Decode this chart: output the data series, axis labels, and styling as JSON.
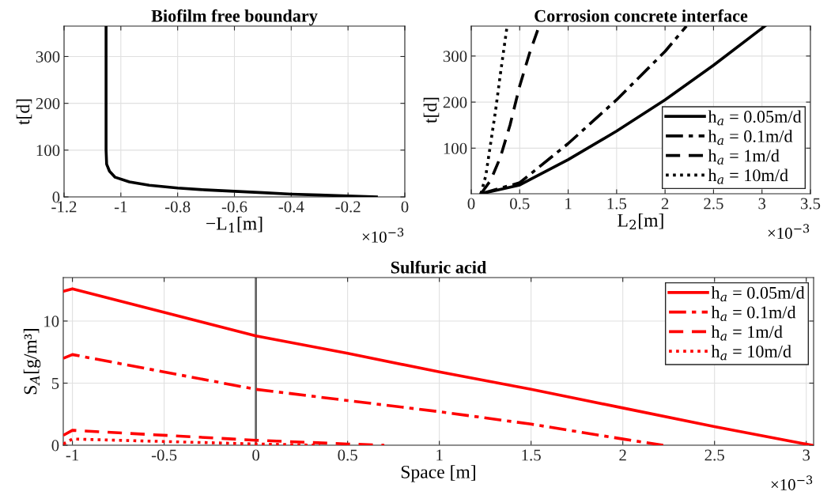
{
  "chart_data": [
    {
      "type": "line",
      "title": "Biofilm free boundary",
      "xlabel": "−L$_{1}$[m]",
      "ylabel": "t[d]",
      "xlim": [
        -1.2,
        0
      ],
      "xticks": [
        -1.2,
        -1,
        -0.8,
        -0.6,
        -0.4,
        -0.2,
        0
      ],
      "ylim": [
        0,
        365
      ],
      "yticks": [
        0,
        100,
        200,
        300
      ],
      "grid": true,
      "legend": false,
      "annotations": [
        "×10$^{−3}$"
      ],
      "series": [
        {
          "color": "#000000",
          "line_style": "solid",
          "x": [
            -0.1,
            -0.2,
            -0.3,
            -0.4,
            -0.5,
            -0.6,
            -0.7,
            -0.8,
            -0.9,
            -0.97,
            -1.02,
            -1.04,
            -1.05,
            -1.052,
            -1.052
          ],
          "values": [
            0,
            2,
            4,
            6,
            9,
            12,
            15,
            19,
            25,
            32,
            42,
            55,
            70,
            100,
            365
          ]
        }
      ]
    },
    {
      "type": "line",
      "title": "Corrosion concrete interface",
      "xlabel": "L$_{2}$[m]",
      "ylabel": "t[d]",
      "xlim": [
        0,
        3.5
      ],
      "xticks": [
        0,
        0.5,
        1,
        1.5,
        2,
        2.5,
        3,
        3.5
      ],
      "ylim": [
        1,
        365
      ],
      "yticks": [
        100,
        200,
        300
      ],
      "grid": true,
      "legend": "bottom right",
      "annotations": [
        "×10$^{−3}$"
      ],
      "series": [
        {
          "name": "h$_{a}$ = 0.05m/d",
          "color": "#000000",
          "line_style": "solid",
          "x": [
            0.1,
            0.5,
            1,
            1.5,
            2,
            2.5,
            3.03
          ],
          "values": [
            1,
            20,
            75,
            137,
            205,
            280,
            365
          ]
        },
        {
          "name": "h$_{a}$ = 0.1m/d",
          "color": "#000000",
          "line_style": "dashdot",
          "x": [
            0.1,
            0.5,
            1,
            1.5,
            2,
            2.22
          ],
          "values": [
            1,
            25,
            110,
            205,
            310,
            365
          ]
        },
        {
          "name": "h$_{a}$ = 1m/d",
          "color": "#000000",
          "line_style": "dashed",
          "x": [
            0.1,
            0.2,
            0.3,
            0.4,
            0.5,
            0.6,
            0.7
          ],
          "values": [
            1,
            30,
            80,
            150,
            235,
            305,
            365
          ]
        },
        {
          "name": "h$_{a}$ = 10m/d",
          "color": "#000000",
          "line_style": "dotted",
          "x": [
            0.1,
            0.15,
            0.2,
            0.25,
            0.3,
            0.37
          ],
          "values": [
            1,
            40,
            110,
            180,
            260,
            365
          ]
        }
      ]
    },
    {
      "type": "line",
      "title": "Sulfuric acid",
      "xlabel": "Space [m]",
      "ylabel": "S$_{A}$[g/m³]",
      "xlim": [
        -1.05,
        3.04
      ],
      "xticks": [
        -1,
        -0.5,
        0,
        0.5,
        1,
        1.5,
        2,
        2.5,
        3
      ],
      "ylim": [
        0,
        13.5
      ],
      "yticks": [
        0,
        5,
        10
      ],
      "grid": true,
      "legend": "top right",
      "annotations": [
        "×10$^{−3}$"
      ],
      "ref_lines": [
        {
          "axis": "x",
          "value": 0,
          "color": "#666666",
          "line_style": "solid"
        }
      ],
      "series": [
        {
          "name": "h$_{a}$ = 0.05m/d",
          "color": "#ff0000",
          "line_style": "solid",
          "x": [
            -1.05,
            -1,
            0,
            0.5,
            1,
            1.5,
            2,
            2.5,
            3.03
          ],
          "values": [
            12.4,
            12.6,
            8.8,
            7.4,
            5.9,
            4.5,
            3.0,
            1.5,
            0
          ]
        },
        {
          "name": "h$_{a}$ = 0.1m/d",
          "color": "#ff0000",
          "line_style": "dashdot",
          "x": [
            -1.05,
            -1,
            0,
            0.5,
            1,
            1.5,
            2,
            2.22
          ],
          "values": [
            7.0,
            7.3,
            4.5,
            3.6,
            2.7,
            1.7,
            0.5,
            0
          ]
        },
        {
          "name": "h$_{a}$ = 1m/d",
          "color": "#ff0000",
          "line_style": "dashed",
          "x": [
            -1.05,
            -1,
            0,
            0.5,
            0.7
          ],
          "values": [
            0.8,
            1.2,
            0.4,
            0.1,
            0
          ]
        },
        {
          "name": "h$_{a}$ = 10m/d",
          "color": "#ff0000",
          "line_style": "dotted",
          "x": [
            -1.05,
            -1,
            0,
            0.35
          ],
          "values": [
            0.1,
            0.5,
            0.1,
            0
          ]
        }
      ]
    }
  ]
}
